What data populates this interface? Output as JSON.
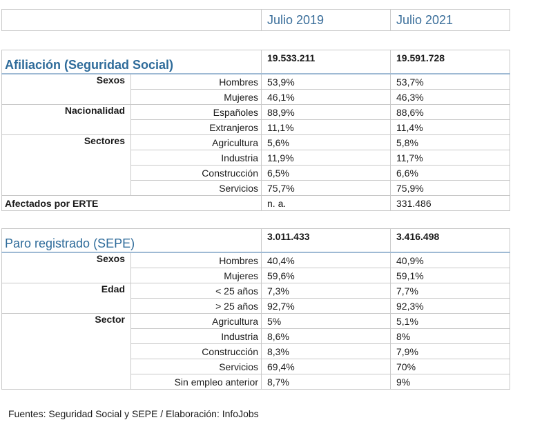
{
  "header": {
    "col_2019": "Julio 2019",
    "col_2021": "Julio 2021"
  },
  "afiliacion": {
    "title": "Afiliación (Seguridad Social)",
    "total_2019": "19.533.211",
    "total_2021": "19.591.728",
    "groups": [
      {
        "label": "Sexos",
        "rows": [
          {
            "label": "Hombres",
            "v2019": "53,9%",
            "v2021": "53,7%"
          },
          {
            "label": "Mujeres",
            "v2019": "46,1%",
            "v2021": "46,3%"
          }
        ]
      },
      {
        "label": "Nacionalidad",
        "rows": [
          {
            "label": "Españoles",
            "v2019": "88,9%",
            "v2021": "88,6%"
          },
          {
            "label": "Extranjeros",
            "v2019": "11,1%",
            "v2021": "11,4%"
          }
        ]
      },
      {
        "label": "Sectores",
        "rows": [
          {
            "label": "Agricultura",
            "v2019": "5,6%",
            "v2021": "5,8%"
          },
          {
            "label": "Industria",
            "v2019": "11,9%",
            "v2021": "11,7%"
          },
          {
            "label": "Construcción",
            "v2019": "6,5%",
            "v2021": "6,6%"
          },
          {
            "label": "Servicios",
            "v2019": "75,7%",
            "v2021": "75,9%"
          }
        ]
      }
    ],
    "erte": {
      "label": "Afectados por ERTE",
      "v2019": "n. a.",
      "v2021": "331.486"
    }
  },
  "paro": {
    "title": "Paro registrado (SEPE)",
    "total_2019": "3.011.433",
    "total_2021": "3.416.498",
    "groups": [
      {
        "label": "Sexos",
        "rows": [
          {
            "label": "Hombres",
            "v2019": "40,4%",
            "v2021": "40,9%"
          },
          {
            "label": "Mujeres",
            "v2019": "59,6%",
            "v2021": "59,1%"
          }
        ]
      },
      {
        "label": "Edad",
        "rows": [
          {
            "label": "< 25 años",
            "v2019": "7,3%",
            "v2021": "7,7%"
          },
          {
            "label": "> 25 años",
            "v2019": "92,7%",
            "v2021": "92,3%"
          }
        ]
      },
      {
        "label": "Sector",
        "rows": [
          {
            "label": "Agricultura",
            "v2019": "5%",
            "v2021": "5,1%"
          },
          {
            "label": "Industria",
            "v2019": "8,6%",
            "v2021": "8%"
          },
          {
            "label": "Construcción",
            "v2019": "8,3%",
            "v2021": "7,9%"
          },
          {
            "label": "Servicios",
            "v2019": "69,4%",
            "v2021": "70%"
          },
          {
            "label": "Sin empleo anterior",
            "v2019": "8,7%",
            "v2021": "9%"
          }
        ]
      }
    ]
  },
  "footer": {
    "source": "Fuentes: Seguridad Social y SEPE / Elaboración: InfoJobs"
  }
}
